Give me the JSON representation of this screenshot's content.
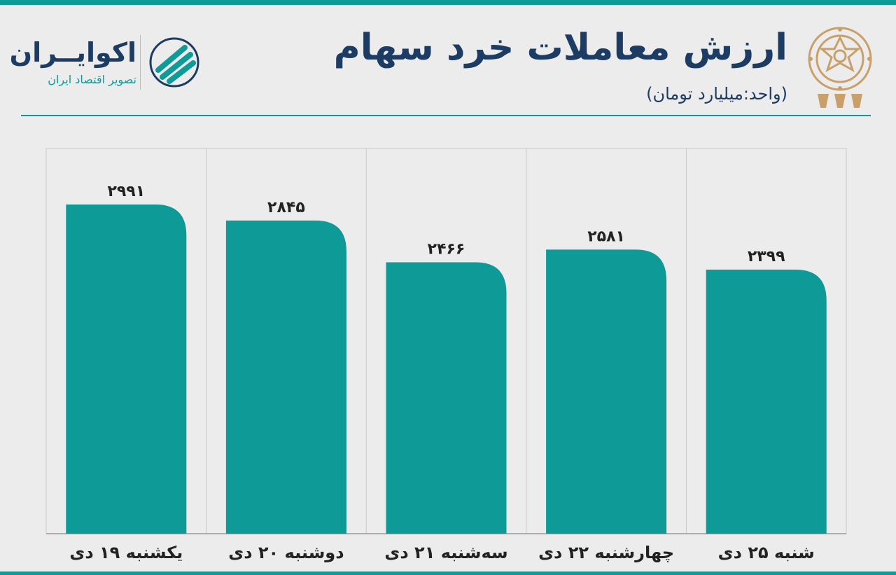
{
  "header": {
    "title": "ارزش معاملات خرد سهام",
    "subtitle": "(واحد:میلیارد تومان)"
  },
  "brand": {
    "name": "اکوایــران",
    "tagline": "تصویر اقتصاد ایران"
  },
  "colors": {
    "bar": "#0e9a97",
    "title": "#1d3c63",
    "accent": "#0e9a97",
    "emblem": "#c9a06a"
  },
  "icons": {
    "brand_logo": "ecoiran-logo-icon",
    "exchange_emblem": "stock-exchange-emblem-icon"
  },
  "chart_data": {
    "type": "bar",
    "categories": [
      "یکشنبه ۱۹ دی",
      "دوشنبه ۲۰ دی",
      "سه‌شنبه ۲۱ دی",
      "چهارشنبه ۲۲ دی",
      "شنبه ۲۵ دی"
    ],
    "values": [
      2991,
      2845,
      2466,
      2581,
      2399
    ],
    "value_labels": [
      "۲۹۹۱",
      "۲۸۴۵",
      "۲۴۶۶",
      "۲۵۸۱",
      "۲۳۹۹"
    ],
    "ylim": [
      0,
      3500
    ],
    "grid": "vertical-separators",
    "legend": "none"
  }
}
